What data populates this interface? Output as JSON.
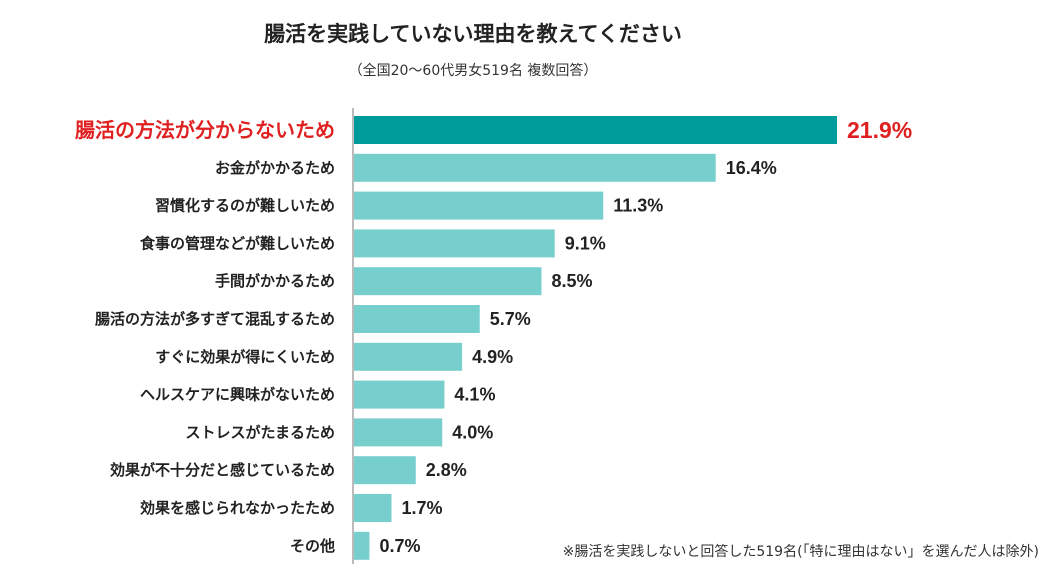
{
  "chart_data": {
    "type": "bar",
    "orientation": "horizontal",
    "title": "腸活を実践していない理由を教えてください",
    "subtitle": "（全国20〜60代男女519名 複数回答）",
    "footnote": "※腸活を実践しないと回答した519名(「特に理由はない」を選んだ人は除外)",
    "categories": [
      "腸活の方法が分からないため",
      "お金がかかるため",
      "習慣化するのが難しいため",
      "食事の管理などが難しいため",
      "手間がかかるため",
      "腸活の方法が多すぎて混乱するため",
      "すぐに効果が得にくいため",
      "ヘルスケアに興味がないため",
      "ストレスがたまるため",
      "効果が不十分だと感じているため",
      "効果を感じられなかったため",
      "その他"
    ],
    "values": [
      21.9,
      16.4,
      11.3,
      9.1,
      8.5,
      5.7,
      4.9,
      4.1,
      4.0,
      2.8,
      1.7,
      0.7
    ],
    "value_labels": [
      "21.9%",
      "16.4%",
      "11.3%",
      "9.1%",
      "8.5%",
      "5.7%",
      "4.9%",
      "4.1%",
      "4.0%",
      "2.8%",
      "1.7%",
      "0.7%"
    ],
    "highlight_index": 0,
    "xlim": [
      0,
      21.9
    ],
    "grid": false,
    "colors": {
      "highlight_bar": "#009b9b",
      "bar": "#77cfcd",
      "highlight_text": "#e02020",
      "text": "#222222",
      "axis": "#777777"
    }
  }
}
